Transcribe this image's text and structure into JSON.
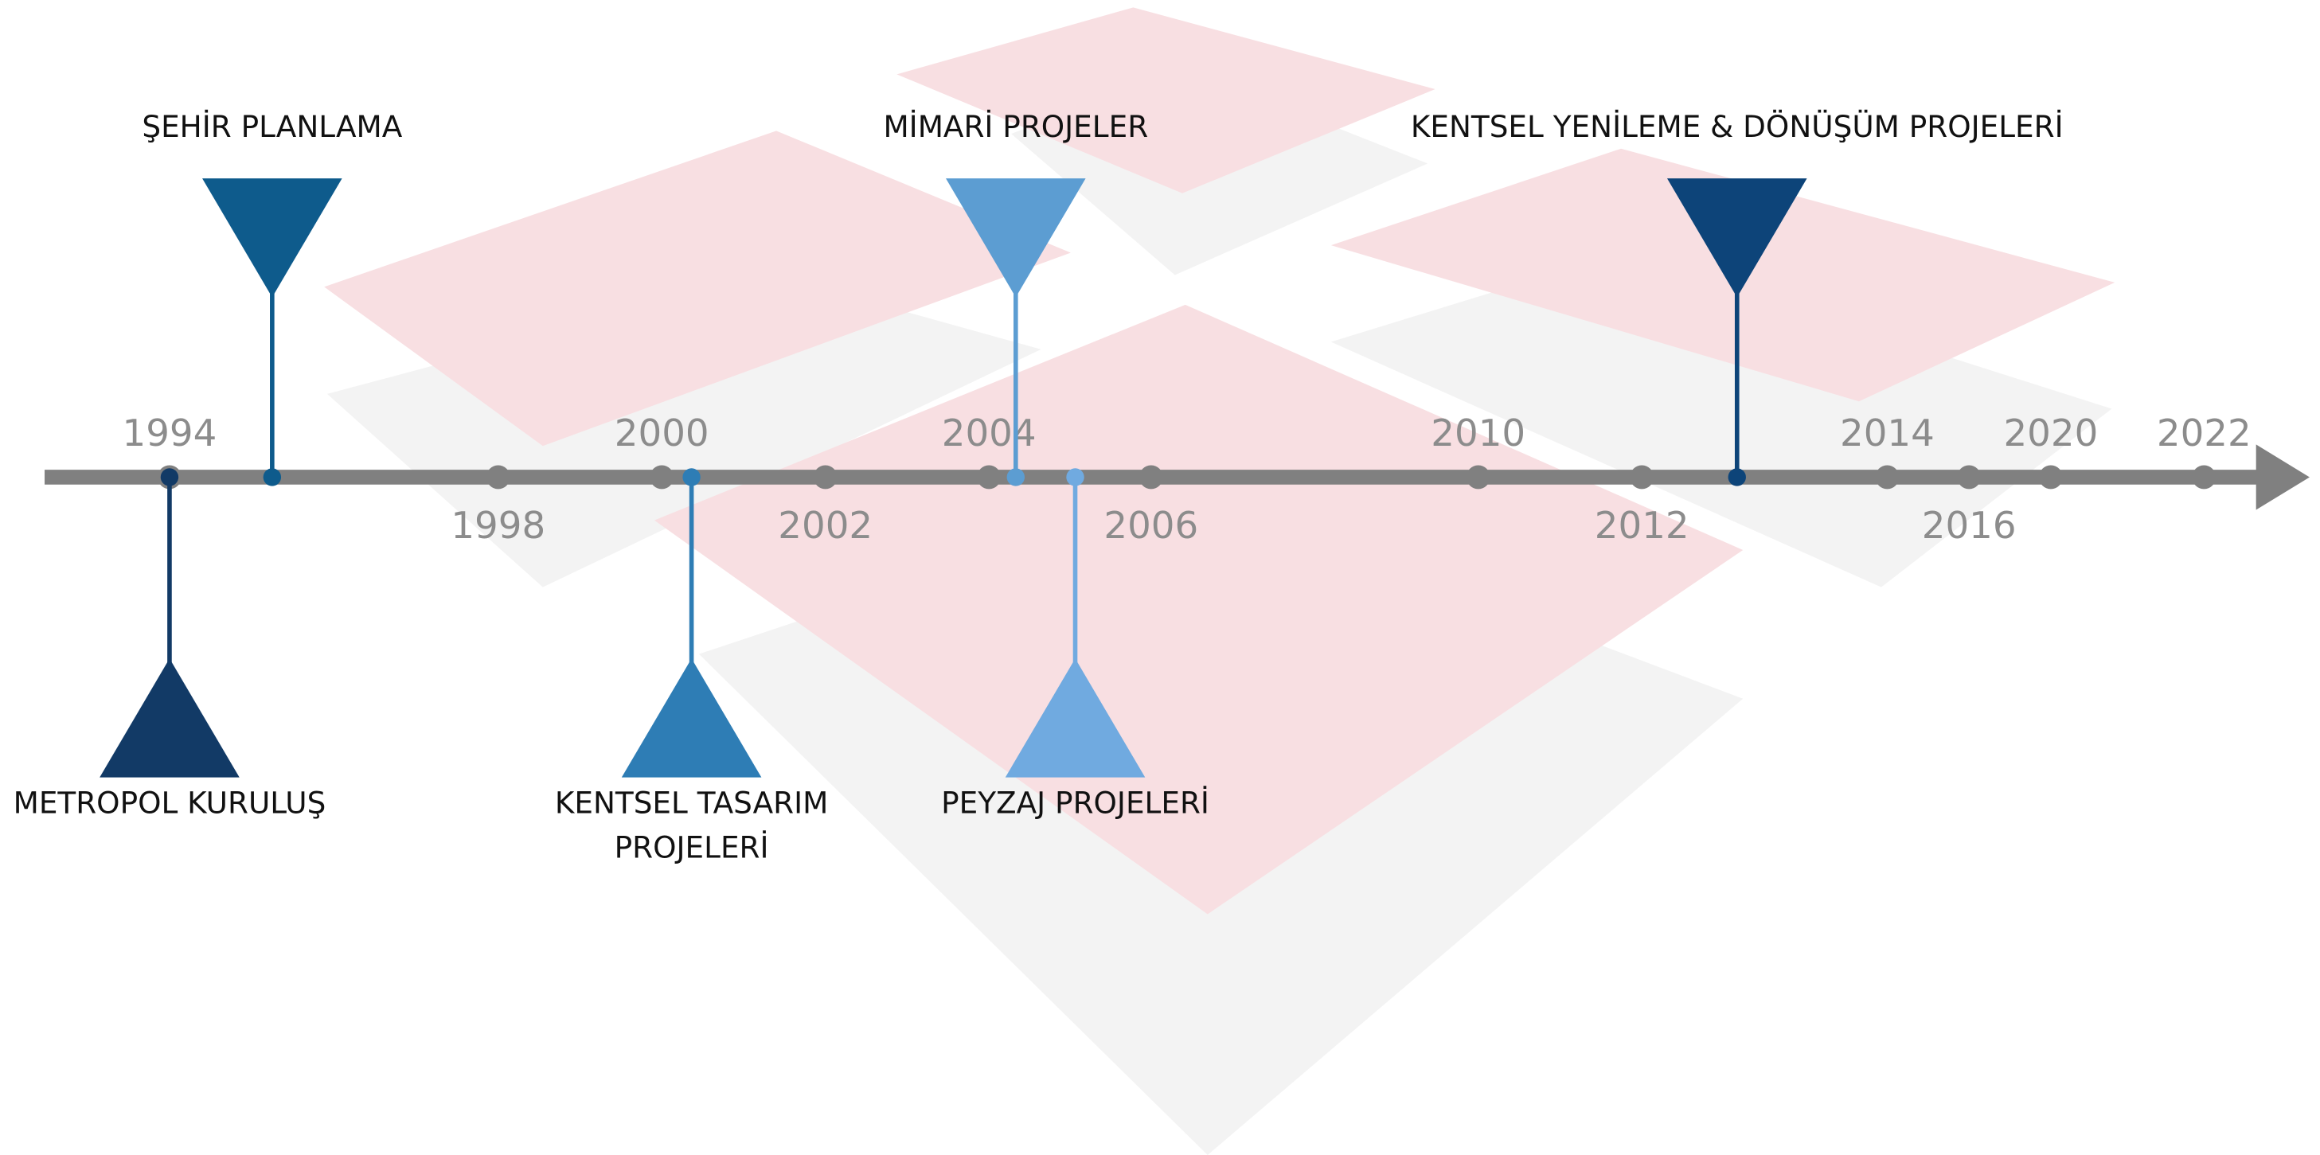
{
  "timeline": {
    "years": [
      "1994",
      "1998",
      "2000",
      "2002",
      "2004",
      "2006",
      "2010",
      "2012",
      "2014",
      "2016",
      "2020",
      "2022"
    ],
    "events": [
      {
        "label_lines": [
          "METROPOL KURULUŞ"
        ],
        "color": "#123a66"
      },
      {
        "label_lines": [
          "ŞEHİR PLANLAMA"
        ],
        "color": "#0e5b8c"
      },
      {
        "label_lines": [
          "KENTSEL TASARIM",
          "PROJELERİ"
        ],
        "color": "#2e7db5"
      },
      {
        "label_lines": [
          "MİMARİ PROJELER"
        ],
        "color": "#5c9dd2"
      },
      {
        "label_lines": [
          "PEYZAJ PROJELERİ"
        ],
        "color": "#70aae0"
      },
      {
        "label_lines": [
          "KENTSEL YENİLEME & DÖNÜŞÜM PROJELERİ"
        ],
        "color": "#0d4479"
      }
    ]
  }
}
